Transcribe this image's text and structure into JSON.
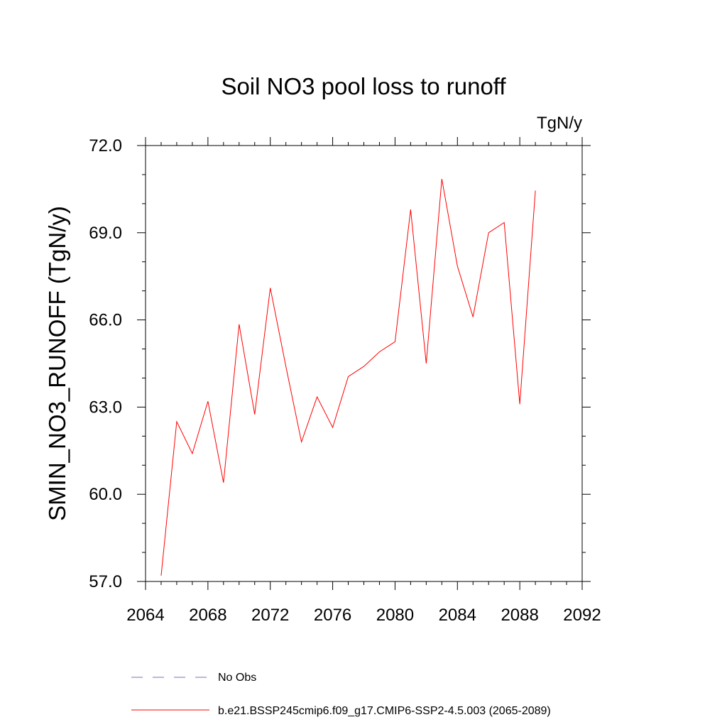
{
  "chart_data": {
    "type": "line",
    "title": "Soil NO3 pool loss to runoff",
    "units": "TgN/y",
    "ylabel": "SMIN_NO3_RUNOFF  (TgN/y)",
    "xlabel": "",
    "xlim": [
      2064,
      2092
    ],
    "ylim": [
      57.0,
      72.0
    ],
    "x_ticks": [
      2064,
      2068,
      2072,
      2076,
      2080,
      2084,
      2088,
      2092
    ],
    "x_tick_labels": [
      "2064",
      "2068",
      "2072",
      "2076",
      "2080",
      "2084",
      "2088",
      "2092"
    ],
    "y_ticks": [
      57.0,
      60.0,
      63.0,
      66.0,
      69.0,
      72.0
    ],
    "y_tick_labels": [
      "57.0",
      "60.0",
      "63.0",
      "66.0",
      "69.0",
      "72.0"
    ],
    "grid": false,
    "legend_position": "bottom",
    "series": [
      {
        "name": "b.e21.BSSP245cmip6.f09_g17.CMIP6-SSP2-4.5.003 (2065-2089)",
        "color": "#ff0000",
        "dash": "solid",
        "x": [
          2065,
          2066,
          2067,
          2068,
          2069,
          2070,
          2071,
          2072,
          2073,
          2074,
          2075,
          2076,
          2077,
          2078,
          2079,
          2080,
          2081,
          2082,
          2083,
          2084,
          2085,
          2086,
          2087,
          2088,
          2089
        ],
        "values": [
          57.2,
          62.5,
          61.4,
          63.2,
          60.4,
          65.85,
          62.75,
          67.1,
          64.4,
          61.8,
          63.35,
          62.3,
          64.05,
          64.4,
          64.9,
          65.25,
          69.8,
          64.5,
          70.85,
          67.85,
          66.1,
          69.0,
          69.35,
          63.1,
          70.45
        ]
      },
      {
        "name": "No Obs",
        "color": "#7b72b8",
        "dash": "dashed",
        "x": [],
        "values": []
      }
    ]
  }
}
